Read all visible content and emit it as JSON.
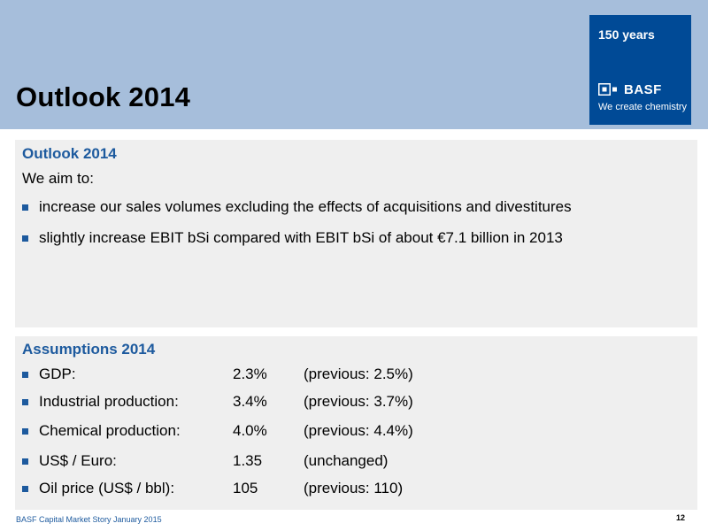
{
  "header": {
    "title": "Outlook 2014",
    "brand": {
      "years": "150 years",
      "logo_text": "BASF",
      "tagline": "We create chemistry",
      "color": "#004a96"
    },
    "band_color": "#a6bedb"
  },
  "outlook": {
    "heading": "Outlook 2014",
    "intro": "We aim to:",
    "bullets": [
      "increase our sales volumes excluding the effects of acquisitions and divestitures",
      "slightly increase EBIT bSi compared with EBIT bSi of about €7.1 billion in 2013"
    ]
  },
  "assumptions": {
    "heading": "Assumptions 2014",
    "rows": [
      {
        "label": "GDP:",
        "value": "2.3%",
        "note": "(previous: 2.5%)"
      },
      {
        "label": "Industrial production:",
        "value": "3.4%",
        "note": "(previous: 3.7%)"
      },
      {
        "label": "Chemical production:",
        "value": "4.0%",
        "note": "(previous: 4.4%)"
      },
      {
        "label": "US$ / Euro:",
        "value": "1.35",
        "note": "(unchanged)"
      },
      {
        "label": "Oil price (US$ / bbl):",
        "value": "105",
        "note": "(previous: 110)"
      }
    ]
  },
  "footer": {
    "source": "BASF Capital Market Story January 2015",
    "page_number": "12"
  },
  "colors": {
    "accent": "#1d5a9e",
    "panel": "#efefef"
  }
}
